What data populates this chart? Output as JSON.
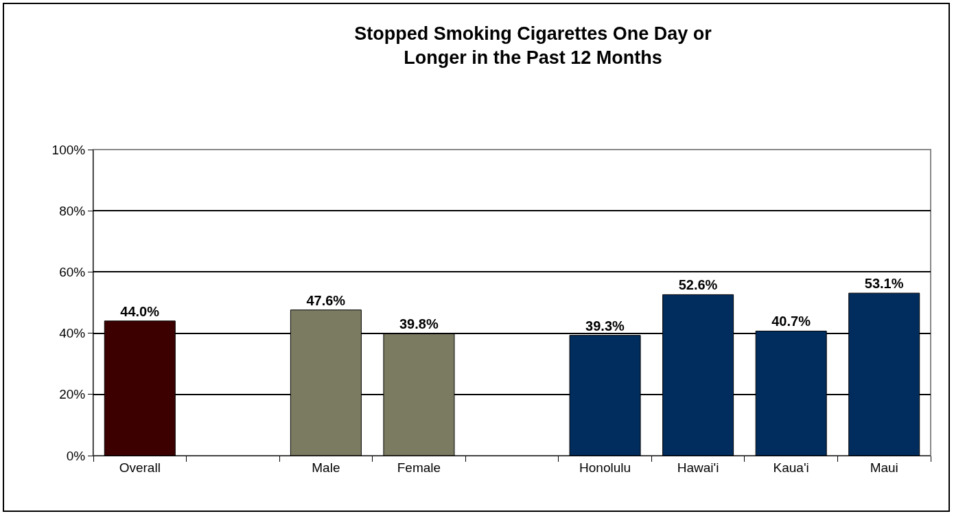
{
  "chart_data": {
    "type": "bar",
    "title": "Stopped Smoking Cigarettes One Day or Longer in the Past 12 Months",
    "categories": [
      "Overall",
      null,
      "Male",
      "Female",
      null,
      "Honolulu",
      "Hawai'i",
      "Kaua'i",
      "Maui"
    ],
    "values": [
      44.0,
      null,
      47.6,
      39.8,
      null,
      39.3,
      52.6,
      40.7,
      53.1
    ],
    "colors": [
      "#3d0000",
      null,
      "#7b7b62",
      "#7b7b62",
      null,
      "#002d5e",
      "#002d5e",
      "#002d5e",
      "#002d5e"
    ],
    "value_labels": [
      "44.0%",
      null,
      "47.6%",
      "39.8%",
      null,
      "39.3%",
      "52.6%",
      "40.7%",
      "53.1%"
    ],
    "ylim": [
      0,
      100
    ],
    "yticks": [
      {
        "value": 0,
        "label": "0%"
      },
      {
        "value": 20,
        "label": "20%"
      },
      {
        "value": 40,
        "label": "40%"
      },
      {
        "value": 60,
        "label": "60%"
      },
      {
        "value": 80,
        "label": "80%"
      },
      {
        "value": 100,
        "label": "100%"
      }
    ],
    "grid": "y"
  }
}
